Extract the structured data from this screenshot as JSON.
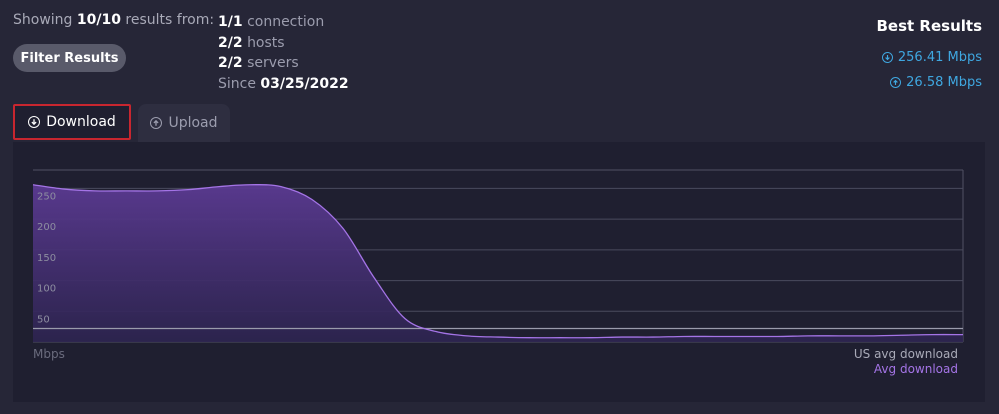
{
  "summary": {
    "prefix": "Showing",
    "count": "10/10",
    "suffix": "results from:"
  },
  "filter_button": "Filter Results",
  "stats": [
    {
      "value": "1/1",
      "label": "connection"
    },
    {
      "value": "2/2",
      "label": "hosts"
    },
    {
      "value": "2/2",
      "label": "servers"
    },
    {
      "value": "03/25/2022",
      "label": "Since"
    }
  ],
  "best_results": {
    "title": "Best Results",
    "download": "256.41 Mbps",
    "upload": "26.58 Mbps",
    "color": "#3fa7e0"
  },
  "tabs": [
    {
      "label": "Download",
      "icon": "arrow-down-circle-icon",
      "active": true
    },
    {
      "label": "Upload",
      "icon": "arrow-up-circle-icon",
      "active": false
    }
  ],
  "chart_data": {
    "type": "area",
    "ylabel": "Mbps",
    "yticks": [
      50,
      100,
      150,
      200,
      250
    ],
    "ylim": [
      0,
      280
    ],
    "grid": true,
    "x": [
      0,
      1,
      2,
      3,
      4,
      5,
      6,
      7,
      8,
      9,
      10,
      11,
      12,
      13,
      14,
      15,
      16,
      17,
      18,
      19,
      20,
      21,
      22,
      23,
      24,
      25,
      26,
      27,
      28,
      29,
      30
    ],
    "series": [
      {
        "name": "Avg download",
        "color": "#a474e6",
        "values": [
          256,
          249,
          246,
          246,
          246,
          248,
          253,
          256,
          253,
          232,
          185,
          105,
          38,
          17,
          10,
          8,
          7,
          7,
          7,
          8,
          8,
          9,
          9,
          9,
          9,
          10,
          10,
          10,
          11,
          12,
          12
        ]
      },
      {
        "name": "US avg download",
        "color": "#9a9bab",
        "values": [
          22,
          22,
          22,
          22,
          22,
          22,
          22,
          22,
          22,
          22,
          22,
          22,
          22,
          22,
          22,
          22,
          22,
          22,
          22,
          22,
          22,
          22,
          22,
          22,
          22,
          22,
          22,
          22,
          22,
          22,
          22
        ]
      }
    ],
    "legend": "bottom-right"
  }
}
